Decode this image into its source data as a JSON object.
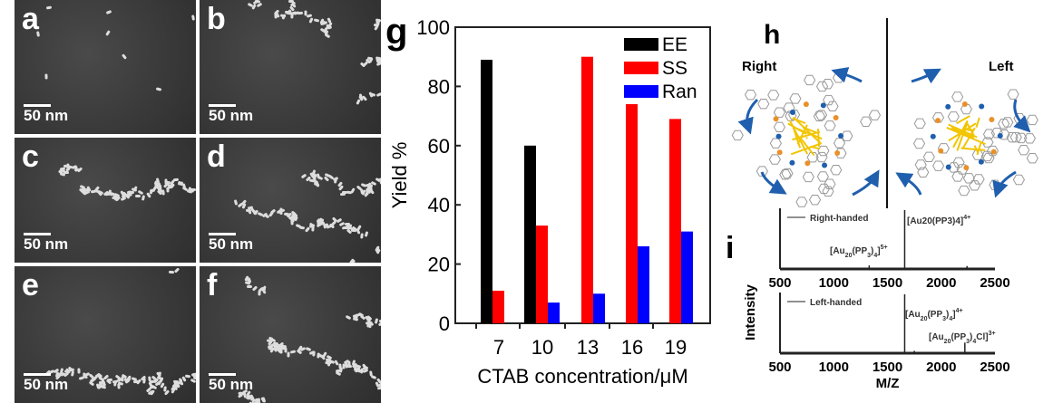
{
  "panels_sem": [
    {
      "label": "a",
      "scale": "50 nm",
      "density": 8
    },
    {
      "label": "b",
      "scale": "50 nm",
      "density": 60
    },
    {
      "label": "c",
      "scale": "50 nm",
      "density": 90
    },
    {
      "label": "d",
      "scale": "50 nm",
      "density": 120
    },
    {
      "label": "e",
      "scale": "50 nm",
      "density": 100
    },
    {
      "label": "f",
      "scale": "50 nm",
      "density": 130
    }
  ],
  "panel_h": {
    "label": "h",
    "left_title": "Right",
    "right_title": "Left",
    "arrow_color": "#1f5fae",
    "gold": "#f2c500",
    "orange": "#e8912a"
  },
  "chart_data": [
    {
      "type": "bar",
      "panel": "g",
      "title": "",
      "xlabel": "CTAB concentration/μM",
      "ylabel": "Yield %",
      "categories": [
        "7",
        "10",
        "13",
        "16",
        "19"
      ],
      "ylim": [
        0,
        100
      ],
      "yticks": [
        0,
        20,
        40,
        60,
        80,
        100
      ],
      "legend": "top-right",
      "series": [
        {
          "name": "EE",
          "color": "#000000",
          "values": [
            89,
            60,
            0,
            0,
            0
          ]
        },
        {
          "name": "SS",
          "color": "#ff0000",
          "values": [
            11,
            33,
            90,
            74,
            69
          ]
        },
        {
          "name": "Ran",
          "color": "#0000ff",
          "values": [
            0,
            7,
            10,
            26,
            31
          ]
        }
      ]
    },
    {
      "type": "line",
      "panel": "i",
      "ylabel": "Intensity",
      "xlabel": "M/Z",
      "xlim": [
        500,
        2500
      ],
      "xticks": [
        "500",
        "1000",
        "1500",
        "2000",
        "2500"
      ],
      "spectra": [
        {
          "legend": "Right-handed",
          "peaks": [
            [
              1660,
              1.0
            ],
            [
              1330,
              0.06
            ],
            [
              2240,
              0.05
            ]
          ],
          "annotations": [
            {
              "text": "[Au20(PP3)4]",
              "sub": "20",
              "sup": "4+",
              "base": "[Au",
              "mid": "(PP",
              "mid_sub": "3",
              "end": ")",
              "end_sub": "4",
              "tail": "]"
            },
            {
              "base": "[Au",
              "sub": "20",
              "mid": "(PP",
              "mid_sub": "3",
              "end": ")",
              "end_sub": "4",
              "tail": "]",
              "sup": "5+"
            }
          ]
        },
        {
          "legend": "Left-handed",
          "peaks": [
            [
              1660,
              1.0
            ],
            [
              2220,
              0.18
            ],
            [
              1750,
              0.04
            ]
          ],
          "annotations": [
            {
              "base": "[Au",
              "sub": "20",
              "mid": "(PP",
              "mid_sub": "3",
              "end": ")",
              "end_sub": "4",
              "tail": "]",
              "sup": "4+"
            },
            {
              "base": "[Au",
              "sub": "20",
              "mid": "(PP",
              "mid_sub": "3",
              "end": ")",
              "end_sub": "4",
              "tail": "Cl]",
              "sup": "3+"
            }
          ]
        }
      ]
    }
  ],
  "panel_labels": {
    "g": "g",
    "i": "i"
  }
}
